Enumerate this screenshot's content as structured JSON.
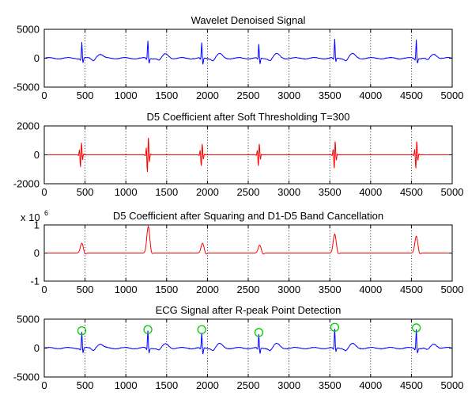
{
  "colors": {
    "blue_series": "#0000ff",
    "red_series": "#ff0000",
    "marker": "#00cc00"
  },
  "chart_data": [
    {
      "type": "line",
      "title": "Wavelet Denoised Signal",
      "xlim": [
        0,
        5000
      ],
      "ylim": [
        -5000,
        5000
      ],
      "x_ticks": [
        "0",
        "500",
        "1000",
        "1500",
        "2000",
        "2500",
        "3000",
        "3500",
        "4000",
        "4500",
        "5000"
      ],
      "y_ticks": [
        "5000",
        "0",
        "-5000"
      ],
      "y_exponent": "",
      "grid": "vertical dotted",
      "series": [
        {
          "color": "blue",
          "peaks": [
            {
              "x": 460,
              "y": 2900,
              "dip": -900
            },
            {
              "x": 1270,
              "y": 3100,
              "dip": -900
            },
            {
              "x": 1930,
              "y": 2700,
              "dip": -1200
            },
            {
              "x": 2630,
              "y": 2400,
              "dip": -1100
            },
            {
              "x": 3560,
              "y": 3300,
              "dip": -700
            },
            {
              "x": 4560,
              "y": 3400,
              "dip": -800
            }
          ]
        }
      ]
    },
    {
      "type": "line",
      "title": "D5 Coefficient after Soft Thresholding T=300",
      "xlim": [
        0,
        5000
      ],
      "ylim": [
        -2000,
        2000
      ],
      "x_ticks": [
        "0",
        "500",
        "1000",
        "1500",
        "2000",
        "2500",
        "3000",
        "3500",
        "4000",
        "4500",
        "5000"
      ],
      "y_ticks": [
        "2000",
        "0",
        "-2000"
      ],
      "y_exponent": "",
      "grid": "vertical dotted",
      "series": [
        {
          "color": "red",
          "bursts": [
            {
              "x": 450,
              "amp": 1000
            },
            {
              "x": 1270,
              "amp": 1400
            },
            {
              "x": 1930,
              "amp": 900
            },
            {
              "x": 2630,
              "amp": 900
            },
            {
              "x": 3560,
              "amp": 1100
            },
            {
              "x": 4560,
              "amp": 1100
            }
          ]
        }
      ]
    },
    {
      "type": "line",
      "title": "D5 Coefficient after Squaring and D1-D5 Band Cancellation",
      "xlim": [
        0,
        5000
      ],
      "ylim": [
        -1,
        1
      ],
      "x_ticks": [
        "0",
        "500",
        "1000",
        "1500",
        "2000",
        "2500",
        "3000",
        "3500",
        "4000",
        "4500",
        "5000"
      ],
      "y_ticks": [
        "1",
        "0",
        "-1"
      ],
      "y_exponent": "x 10",
      "y_exponent_power": "6",
      "grid": "vertical dotted",
      "series": [
        {
          "color": "red",
          "bumps": [
            {
              "x": 460,
              "y": 0.35
            },
            {
              "x": 1275,
              "y": 0.95
            },
            {
              "x": 1940,
              "y": 0.35
            },
            {
              "x": 2640,
              "y": 0.28
            },
            {
              "x": 3560,
              "y": 0.68
            },
            {
              "x": 4560,
              "y": 0.6
            }
          ]
        }
      ]
    },
    {
      "type": "line",
      "title": "ECG Signal after R-peak Point Detection",
      "xlim": [
        0,
        5000
      ],
      "ylim": [
        -5000,
        5000
      ],
      "x_ticks": [
        "0",
        "500",
        "1000",
        "1500",
        "2000",
        "2500",
        "3000",
        "3500",
        "4000",
        "4500",
        "5000"
      ],
      "y_ticks": [
        "5000",
        "0",
        "-5000"
      ],
      "y_exponent": "",
      "grid": "vertical dotted",
      "series": [
        {
          "color": "blue",
          "peaks": [
            {
              "x": 460,
              "y": 2900,
              "dip": -900
            },
            {
              "x": 1270,
              "y": 3100,
              "dip": -900
            },
            {
              "x": 1930,
              "y": 2700,
              "dip": -1200
            },
            {
              "x": 2630,
              "y": 2400,
              "dip": -1100
            },
            {
              "x": 3560,
              "y": 3300,
              "dip": -700
            },
            {
              "x": 4560,
              "y": 3400,
              "dip": -800
            }
          ]
        }
      ],
      "detected_r_peaks": [
        {
          "x": 460,
          "y": 3000
        },
        {
          "x": 1270,
          "y": 3200
        },
        {
          "x": 1930,
          "y": 3200
        },
        {
          "x": 2630,
          "y": 2700
        },
        {
          "x": 3560,
          "y": 3600
        },
        {
          "x": 4560,
          "y": 3500
        }
      ]
    }
  ]
}
